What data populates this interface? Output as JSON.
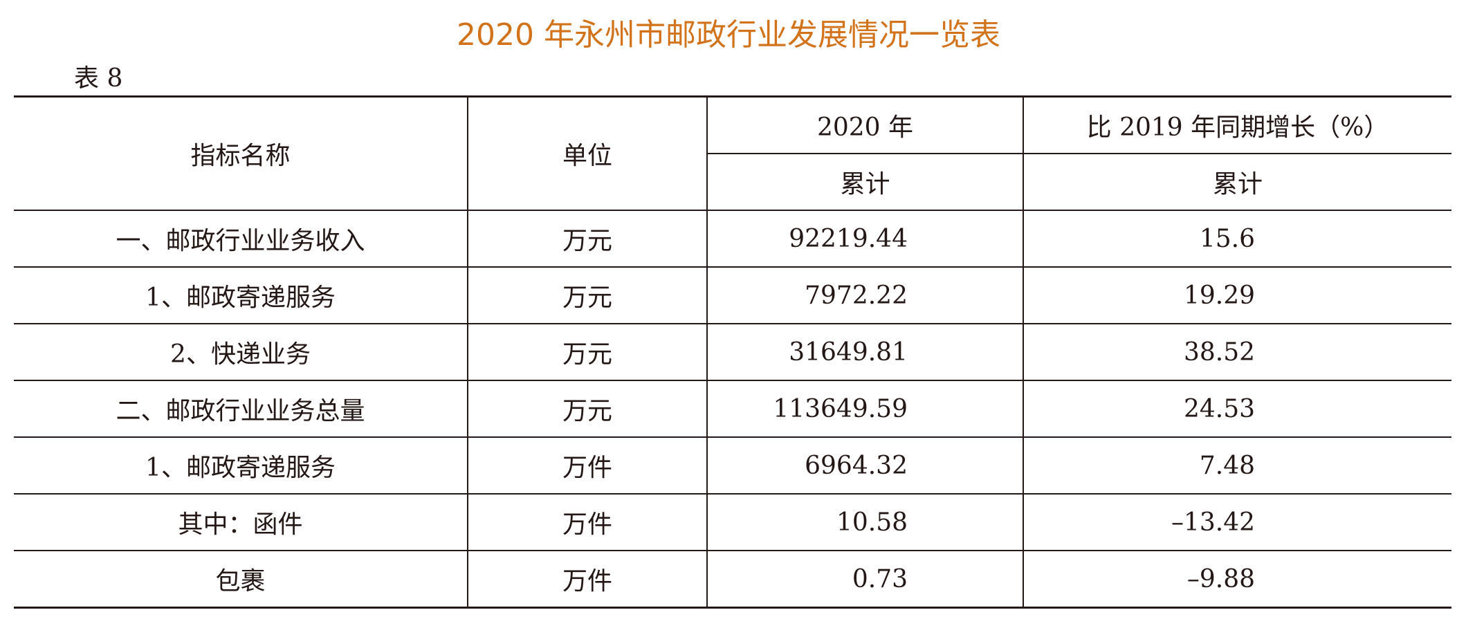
{
  "title": "2020 年永州市邮政行业发展情况一览表",
  "table_label": "表 8",
  "table": {
    "header": {
      "name": "指标名称",
      "unit": "单位",
      "year": "2020 年",
      "growth": "比 2019 年同期增长（%）",
      "sub_year": "累计",
      "sub_growth": "累计"
    },
    "rows": [
      [
        "一、邮政行业业务收入",
        "万元",
        "92219.44",
        "15.6"
      ],
      [
        "1、邮政寄递服务",
        "万元",
        "7972.22",
        "19.29"
      ],
      [
        "2、快递业务",
        "万元",
        "31649.81",
        "38.52"
      ],
      [
        "二、邮政行业业务总量",
        "万元",
        "113649.59",
        "24.53"
      ],
      [
        "1、邮政寄递服务",
        "万件",
        "6964.32",
        "7.48"
      ],
      [
        "其中：函件",
        "万件",
        "10.58",
        "–13.42"
      ],
      [
        "包裹",
        "万件",
        "0.73",
        "–9.88"
      ]
    ]
  }
}
